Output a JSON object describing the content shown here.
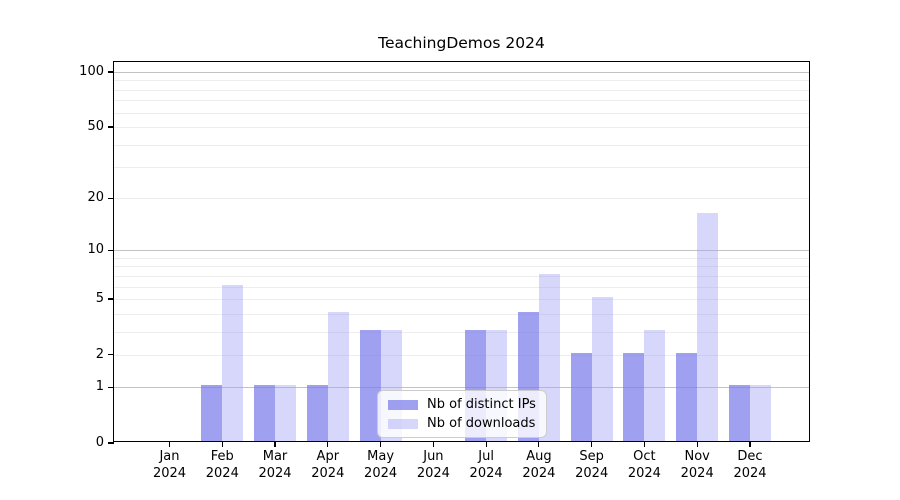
{
  "title": "TeachingDemos 2024",
  "chart_data": {
    "type": "bar",
    "title": "TeachingDemos 2024",
    "categories": [
      "Jan 2024",
      "Feb 2024",
      "Mar 2024",
      "Apr 2024",
      "May 2024",
      "Jun 2024",
      "Jul 2024",
      "Aug 2024",
      "Sep 2024",
      "Oct 2024",
      "Nov 2024",
      "Dec 2024"
    ],
    "x_tick_month": [
      "Jan",
      "Feb",
      "Mar",
      "Apr",
      "May",
      "Jun",
      "Jul",
      "Aug",
      "Sep",
      "Oct",
      "Nov",
      "Dec"
    ],
    "x_tick_year": "2024",
    "series": [
      {
        "name": "Nb of distinct IPs",
        "values": [
          0,
          1,
          1,
          1,
          3,
          0,
          3,
          4,
          2,
          2,
          2,
          1
        ],
        "color": "rgba(124,124,235,0.72)"
      },
      {
        "name": "Nb of downloads",
        "values": [
          0,
          6,
          1,
          4,
          3,
          0,
          3,
          7,
          5,
          3,
          16,
          1
        ],
        "color": "rgba(160,160,245,0.42)"
      }
    ],
    "y_scale": "log1p",
    "y_ticks": [
      0,
      1,
      2,
      5,
      10,
      20,
      50,
      100
    ],
    "y_minor_gridlines": [
      2,
      3,
      4,
      5,
      6,
      7,
      8,
      9,
      20,
      30,
      40,
      50,
      60,
      70,
      80,
      90
    ],
    "y_major_gridlines": [
      1,
      10,
      100
    ],
    "ylim": [
      0,
      113
    ],
    "grid": true,
    "legend": {
      "position": "inside-bottom-center",
      "labels": [
        "Nb of distinct IPs",
        "Nb of downloads"
      ]
    },
    "colors": {
      "axis": "#000000",
      "minor_grid": "#ededed",
      "major_grid": "#c3c3c3",
      "background": "#ffffff"
    }
  }
}
